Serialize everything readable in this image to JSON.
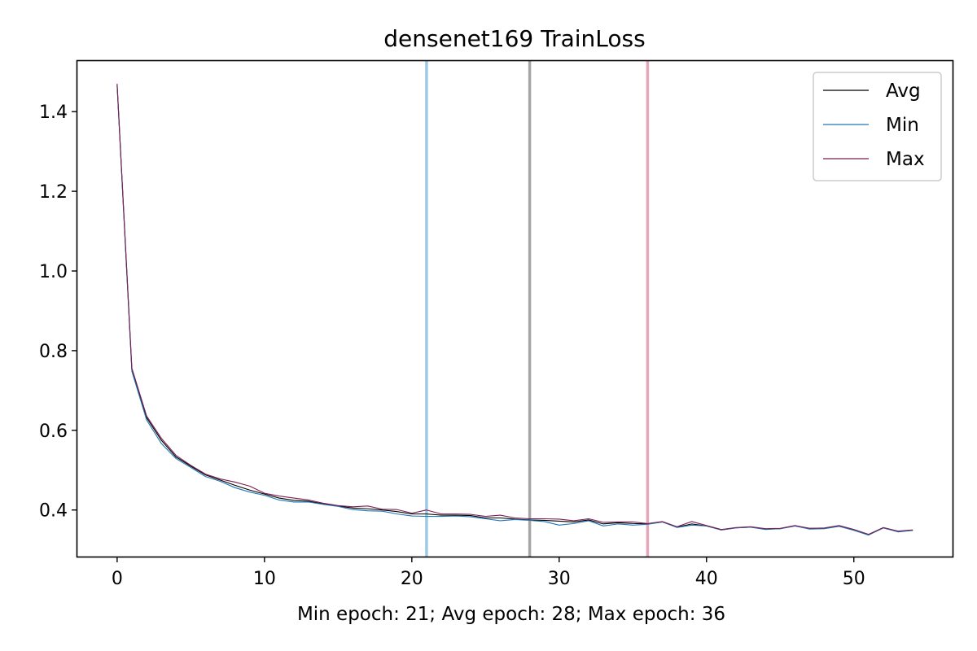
{
  "chart_data": {
    "type": "line",
    "title": "densenet169 TrainLoss",
    "xlabel": "Min epoch: 21; Avg epoch: 28; Max epoch: 36",
    "ylabel": "",
    "xlim": [
      -2.7,
      56.7
    ],
    "ylim": [
      0.283,
      1.527
    ],
    "xticks": [
      0,
      10,
      20,
      30,
      40,
      50
    ],
    "yticks": [
      0.4,
      0.6,
      0.8,
      1.0,
      1.2,
      1.4
    ],
    "ytick_labels": [
      "0.4",
      "0.6",
      "0.8",
      "1.0",
      "1.2",
      "1.4"
    ],
    "grid": false,
    "legend_position": "top-right",
    "x": [
      0,
      1,
      2,
      3,
      4,
      5,
      6,
      7,
      8,
      9,
      10,
      11,
      12,
      13,
      14,
      15,
      16,
      17,
      18,
      19,
      20,
      21,
      22,
      23,
      24,
      25,
      26,
      27,
      28,
      29,
      30,
      31,
      32,
      33,
      34,
      35,
      36,
      37,
      38,
      39,
      40,
      41,
      42,
      43,
      44,
      45,
      46,
      47,
      48,
      49,
      50,
      51,
      52,
      53,
      54
    ],
    "series": [
      {
        "name": "Avg",
        "color": "#000000",
        "values": [
          1.467,
          0.752,
          0.632,
          0.575,
          0.533,
          0.51,
          0.488,
          0.475,
          0.462,
          0.45,
          0.44,
          0.43,
          0.424,
          0.422,
          0.415,
          0.41,
          0.405,
          0.403,
          0.4,
          0.396,
          0.39,
          0.39,
          0.387,
          0.387,
          0.386,
          0.38,
          0.38,
          0.377,
          0.375,
          0.374,
          0.372,
          0.37,
          0.375,
          0.365,
          0.368,
          0.366,
          0.365,
          0.37,
          0.357,
          0.365,
          0.36,
          0.35,
          0.355,
          0.357,
          0.352,
          0.353,
          0.36,
          0.354,
          0.354,
          0.36,
          0.35,
          0.338,
          0.355,
          0.346,
          0.349
        ]
      },
      {
        "name": "Min",
        "color": "#1f77b4",
        "values": [
          1.465,
          0.748,
          0.626,
          0.567,
          0.529,
          0.507,
          0.484,
          0.472,
          0.456,
          0.445,
          0.437,
          0.425,
          0.42,
          0.42,
          0.414,
          0.409,
          0.401,
          0.398,
          0.397,
          0.39,
          0.385,
          0.384,
          0.384,
          0.385,
          0.383,
          0.378,
          0.373,
          0.376,
          0.374,
          0.371,
          0.362,
          0.366,
          0.373,
          0.36,
          0.365,
          0.362,
          0.364,
          0.37,
          0.356,
          0.362,
          0.36,
          0.35,
          0.355,
          0.357,
          0.351,
          0.353,
          0.36,
          0.352,
          0.353,
          0.359,
          0.349,
          0.337,
          0.355,
          0.345,
          0.349
        ]
      },
      {
        "name": "Max",
        "color": "#7b1f52",
        "values": [
          1.47,
          0.756,
          0.636,
          0.58,
          0.537,
          0.512,
          0.49,
          0.478,
          0.47,
          0.46,
          0.442,
          0.435,
          0.43,
          0.425,
          0.417,
          0.411,
          0.408,
          0.41,
          0.402,
          0.401,
          0.392,
          0.4,
          0.39,
          0.39,
          0.389,
          0.384,
          0.387,
          0.38,
          0.378,
          0.378,
          0.377,
          0.373,
          0.378,
          0.369,
          0.37,
          0.37,
          0.366,
          0.371,
          0.358,
          0.371,
          0.361,
          0.351,
          0.356,
          0.358,
          0.353,
          0.354,
          0.361,
          0.354,
          0.355,
          0.361,
          0.351,
          0.339,
          0.356,
          0.347,
          0.35
        ]
      }
    ],
    "vlines": [
      {
        "x": 21,
        "color": "#9ecae1"
      },
      {
        "x": 28,
        "color": "#a6a6a6"
      },
      {
        "x": 36,
        "color": "#e8a5b9"
      }
    ]
  }
}
